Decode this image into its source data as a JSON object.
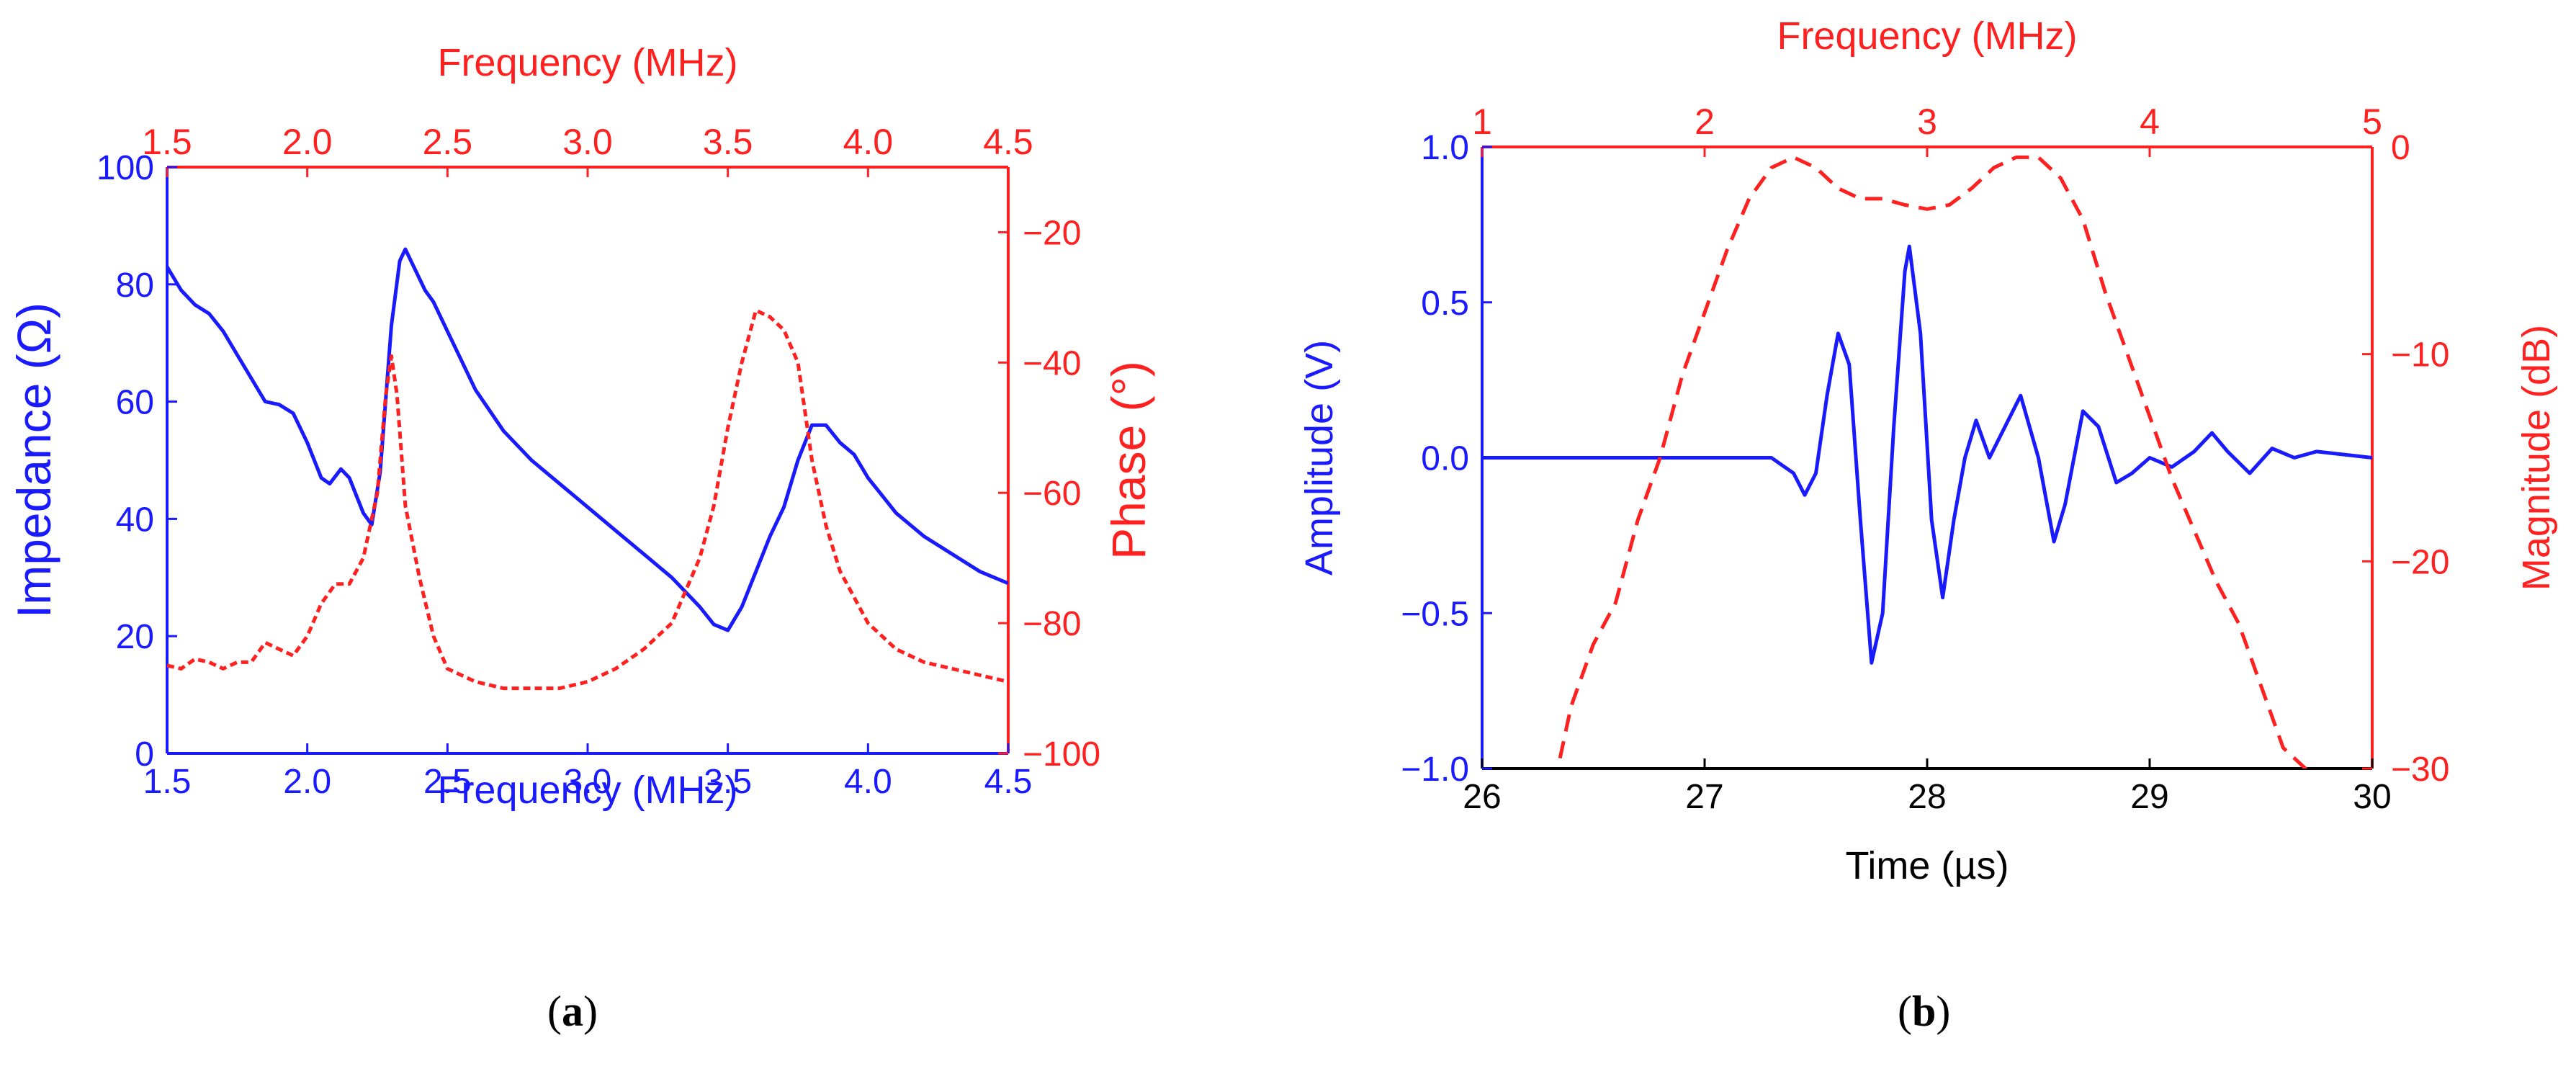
{
  "colors": {
    "blue": "#1a1aff",
    "red": "#ff2020",
    "black": "#000000"
  },
  "panel_labels": {
    "a": {
      "open": "(",
      "letter": "a",
      "close": ")"
    },
    "b": {
      "open": "(",
      "letter": "b",
      "close": ")"
    }
  },
  "chart_data": [
    {
      "id": "a",
      "type": "line",
      "x_bottom": {
        "label": "Frequency (MHz)",
        "range": [
          1.5,
          4.5
        ],
        "ticks": [
          "1.5",
          "2.0",
          "2.5",
          "3.0",
          "3.5",
          "4.0",
          "4.5"
        ],
        "color": "blue"
      },
      "x_top": {
        "label": "Frequency (MHz)",
        "range": [
          1.5,
          4.5
        ],
        "ticks": [
          "1.5",
          "2.0",
          "2.5",
          "3.0",
          "3.5",
          "4.0",
          "4.5"
        ],
        "color": "red"
      },
      "y_left": {
        "label": "Impedance (Ω)",
        "range": [
          0,
          100
        ],
        "ticks": [
          "0",
          "20",
          "40",
          "60",
          "80",
          "100"
        ],
        "color": "blue"
      },
      "y_right": {
        "label": "Phase (°)",
        "range": [
          -100,
          -10
        ],
        "ticks": [
          "−20",
          "−40",
          "−60",
          "−80",
          "−100"
        ],
        "tick_values": [
          -20,
          -40,
          -60,
          -80,
          -100
        ],
        "color": "red"
      },
      "series": [
        {
          "axis": "left",
          "style": "solid",
          "color": "blue",
          "points": [
            [
              1.5,
              83
            ],
            [
              1.55,
              79
            ],
            [
              1.6,
              76.5
            ],
            [
              1.65,
              75
            ],
            [
              1.7,
              72
            ],
            [
              1.75,
              68
            ],
            [
              1.8,
              64
            ],
            [
              1.85,
              60
            ],
            [
              1.9,
              59.5
            ],
            [
              1.95,
              58
            ],
            [
              2.0,
              53
            ],
            [
              2.05,
              47
            ],
            [
              2.08,
              46
            ],
            [
              2.12,
              48.5
            ],
            [
              2.15,
              47
            ],
            [
              2.2,
              41
            ],
            [
              2.23,
              39
            ],
            [
              2.26,
              48
            ],
            [
              2.3,
              73
            ],
            [
              2.33,
              84
            ],
            [
              2.35,
              86
            ],
            [
              2.38,
              83
            ],
            [
              2.42,
              79
            ],
            [
              2.45,
              77
            ],
            [
              2.5,
              72
            ],
            [
              2.6,
              62
            ],
            [
              2.7,
              55
            ],
            [
              2.8,
              50
            ],
            [
              2.9,
              46
            ],
            [
              3.0,
              42
            ],
            [
              3.1,
              38
            ],
            [
              3.2,
              34
            ],
            [
              3.3,
              30
            ],
            [
              3.4,
              25
            ],
            [
              3.45,
              22
            ],
            [
              3.5,
              21
            ],
            [
              3.55,
              25
            ],
            [
              3.6,
              31
            ],
            [
              3.65,
              37
            ],
            [
              3.7,
              42
            ],
            [
              3.75,
              50
            ],
            [
              3.8,
              56
            ],
            [
              3.85,
              56
            ],
            [
              3.9,
              53
            ],
            [
              3.95,
              51
            ],
            [
              4.0,
              47
            ],
            [
              4.05,
              44
            ],
            [
              4.1,
              41
            ],
            [
              4.2,
              37
            ],
            [
              4.3,
              34
            ],
            [
              4.4,
              31
            ],
            [
              4.5,
              29
            ]
          ]
        },
        {
          "axis": "right",
          "style": "dashed",
          "color": "red",
          "points": [
            [
              1.5,
              -86.5
            ],
            [
              1.55,
              -87
            ],
            [
              1.6,
              -85.5
            ],
            [
              1.65,
              -86
            ],
            [
              1.7,
              -87
            ],
            [
              1.75,
              -86
            ],
            [
              1.8,
              -86
            ],
            [
              1.85,
              -83
            ],
            [
              1.9,
              -84
            ],
            [
              1.95,
              -85
            ],
            [
              2.0,
              -82
            ],
            [
              2.05,
              -77
            ],
            [
              2.1,
              -74
            ],
            [
              2.15,
              -74
            ],
            [
              2.2,
              -70
            ],
            [
              2.25,
              -60
            ],
            [
              2.28,
              -45
            ],
            [
              2.3,
              -39
            ],
            [
              2.32,
              -45
            ],
            [
              2.35,
              -62
            ],
            [
              2.4,
              -73
            ],
            [
              2.45,
              -82
            ],
            [
              2.5,
              -87
            ],
            [
              2.6,
              -89
            ],
            [
              2.7,
              -90
            ],
            [
              2.8,
              -90
            ],
            [
              2.9,
              -90
            ],
            [
              3.0,
              -89
            ],
            [
              3.1,
              -87
            ],
            [
              3.2,
              -84
            ],
            [
              3.3,
              -80
            ],
            [
              3.4,
              -70
            ],
            [
              3.45,
              -62
            ],
            [
              3.5,
              -50
            ],
            [
              3.55,
              -40
            ],
            [
              3.6,
              -32
            ],
            [
              3.65,
              -33
            ],
            [
              3.7,
              -35
            ],
            [
              3.75,
              -40
            ],
            [
              3.8,
              -55
            ],
            [
              3.85,
              -65
            ],
            [
              3.9,
              -72
            ],
            [
              4.0,
              -80
            ],
            [
              4.1,
              -84
            ],
            [
              4.2,
              -86
            ],
            [
              4.3,
              -87
            ],
            [
              4.4,
              -88
            ],
            [
              4.5,
              -89
            ]
          ]
        }
      ]
    },
    {
      "id": "b",
      "type": "line",
      "x_bottom": {
        "label": "Time (µs)",
        "range": [
          26,
          30
        ],
        "ticks": [
          "26",
          "27",
          "28",
          "29",
          "30"
        ],
        "color": "black"
      },
      "x_top": {
        "label": "Frequency (MHz)",
        "range": [
          1,
          5
        ],
        "ticks": [
          "1",
          "2",
          "3",
          "4",
          "5"
        ],
        "color": "red"
      },
      "y_left": {
        "label": "Amplitude (V)",
        "range": [
          -1.0,
          1.0
        ],
        "ticks": [
          "−1.0",
          "−0.5",
          "0.0",
          "0.5",
          "1.0"
        ],
        "tick_values": [
          -1.0,
          -0.5,
          0.0,
          0.5,
          1.0
        ],
        "color": "blue"
      },
      "y_right": {
        "label": "Magnitude (dB)",
        "range": [
          -30,
          0
        ],
        "ticks": [
          "0",
          "−10",
          "−20",
          "−30"
        ],
        "tick_values": [
          0,
          -10,
          -20,
          -30
        ],
        "color": "red"
      },
      "series": [
        {
          "axis": "left",
          "style": "solid",
          "color": "blue",
          "points": [
            [
              26.0,
              0.0
            ],
            [
              27.3,
              0.0
            ],
            [
              27.4,
              -0.05
            ],
            [
              27.45,
              -0.12
            ],
            [
              27.5,
              -0.05
            ],
            [
              27.55,
              0.2
            ],
            [
              27.6,
              0.4
            ],
            [
              27.65,
              0.3
            ],
            [
              27.7,
              -0.2
            ],
            [
              27.75,
              -0.66
            ],
            [
              27.8,
              -0.5
            ],
            [
              27.85,
              0.1
            ],
            [
              27.9,
              0.6
            ],
            [
              27.92,
              0.68
            ],
            [
              27.97,
              0.4
            ],
            [
              28.02,
              -0.2
            ],
            [
              28.07,
              -0.45
            ],
            [
              28.12,
              -0.2
            ],
            [
              28.17,
              0.0
            ],
            [
              28.22,
              0.12
            ],
            [
              28.28,
              0.0
            ],
            [
              28.35,
              0.1
            ],
            [
              28.42,
              0.2
            ],
            [
              28.5,
              0.0
            ],
            [
              28.57,
              -0.27
            ],
            [
              28.62,
              -0.15
            ],
            [
              28.7,
              0.15
            ],
            [
              28.77,
              0.1
            ],
            [
              28.85,
              -0.08
            ],
            [
              28.92,
              -0.05
            ],
            [
              29.0,
              0.0
            ],
            [
              29.1,
              -0.03
            ],
            [
              29.2,
              0.02
            ],
            [
              29.28,
              0.08
            ],
            [
              29.35,
              0.02
            ],
            [
              29.45,
              -0.05
            ],
            [
              29.55,
              0.03
            ],
            [
              29.65,
              0.0
            ],
            [
              29.75,
              0.02
            ],
            [
              30.0,
              0.0
            ]
          ]
        },
        {
          "axis": "right",
          "style": "dashed",
          "color": "red",
          "points": [
            [
              1.35,
              -29.5
            ],
            [
              1.4,
              -27
            ],
            [
              1.5,
              -24
            ],
            [
              1.6,
              -22
            ],
            [
              1.7,
              -18
            ],
            [
              1.8,
              -15
            ],
            [
              1.9,
              -11
            ],
            [
              2.0,
              -8
            ],
            [
              2.1,
              -5
            ],
            [
              2.2,
              -2.5
            ],
            [
              2.3,
              -1
            ],
            [
              2.4,
              -0.5
            ],
            [
              2.5,
              -1
            ],
            [
              2.6,
              -2
            ],
            [
              2.7,
              -2.5
            ],
            [
              2.8,
              -2.5
            ],
            [
              2.9,
              -2.8
            ],
            [
              3.0,
              -3
            ],
            [
              3.1,
              -2.8
            ],
            [
              3.2,
              -2
            ],
            [
              3.3,
              -1
            ],
            [
              3.4,
              -0.5
            ],
            [
              3.5,
              -0.5
            ],
            [
              3.6,
              -1.5
            ],
            [
              3.7,
              -3.5
            ],
            [
              3.8,
              -7
            ],
            [
              3.9,
              -10
            ],
            [
              4.0,
              -13
            ],
            [
              4.1,
              -16
            ],
            [
              4.2,
              -18.5
            ],
            [
              4.3,
              -21
            ],
            [
              4.4,
              -23
            ],
            [
              4.5,
              -26
            ],
            [
              4.6,
              -29
            ],
            [
              4.7,
              -30
            ],
            [
              4.8,
              -30.5
            ],
            [
              4.9,
              -31
            ],
            [
              5.0,
              -31
            ]
          ]
        }
      ]
    }
  ]
}
